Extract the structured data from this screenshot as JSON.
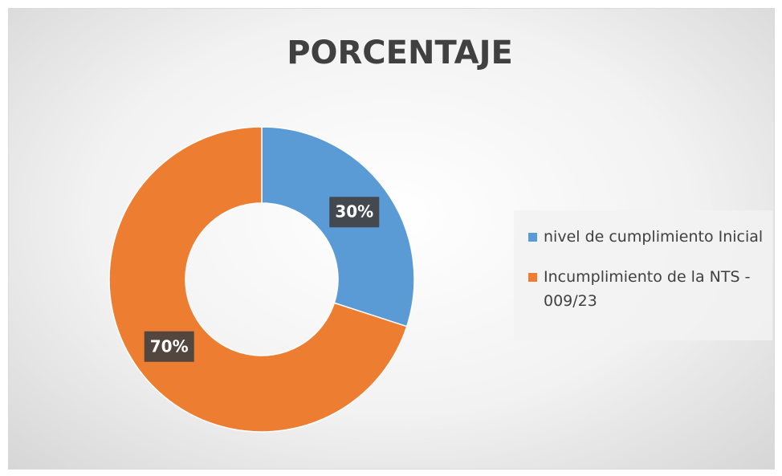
{
  "chart_data": {
    "type": "donut",
    "title": "PORCENTAJE",
    "categories": [
      "nivel de cumplimiento Inicial",
      "Incumplimiento de la NTS - 009/23"
    ],
    "values": [
      30,
      70
    ],
    "value_labels": [
      "30%",
      "70%"
    ],
    "colors": [
      "#5b9bd5",
      "#ed7d31"
    ],
    "legend": "right"
  }
}
